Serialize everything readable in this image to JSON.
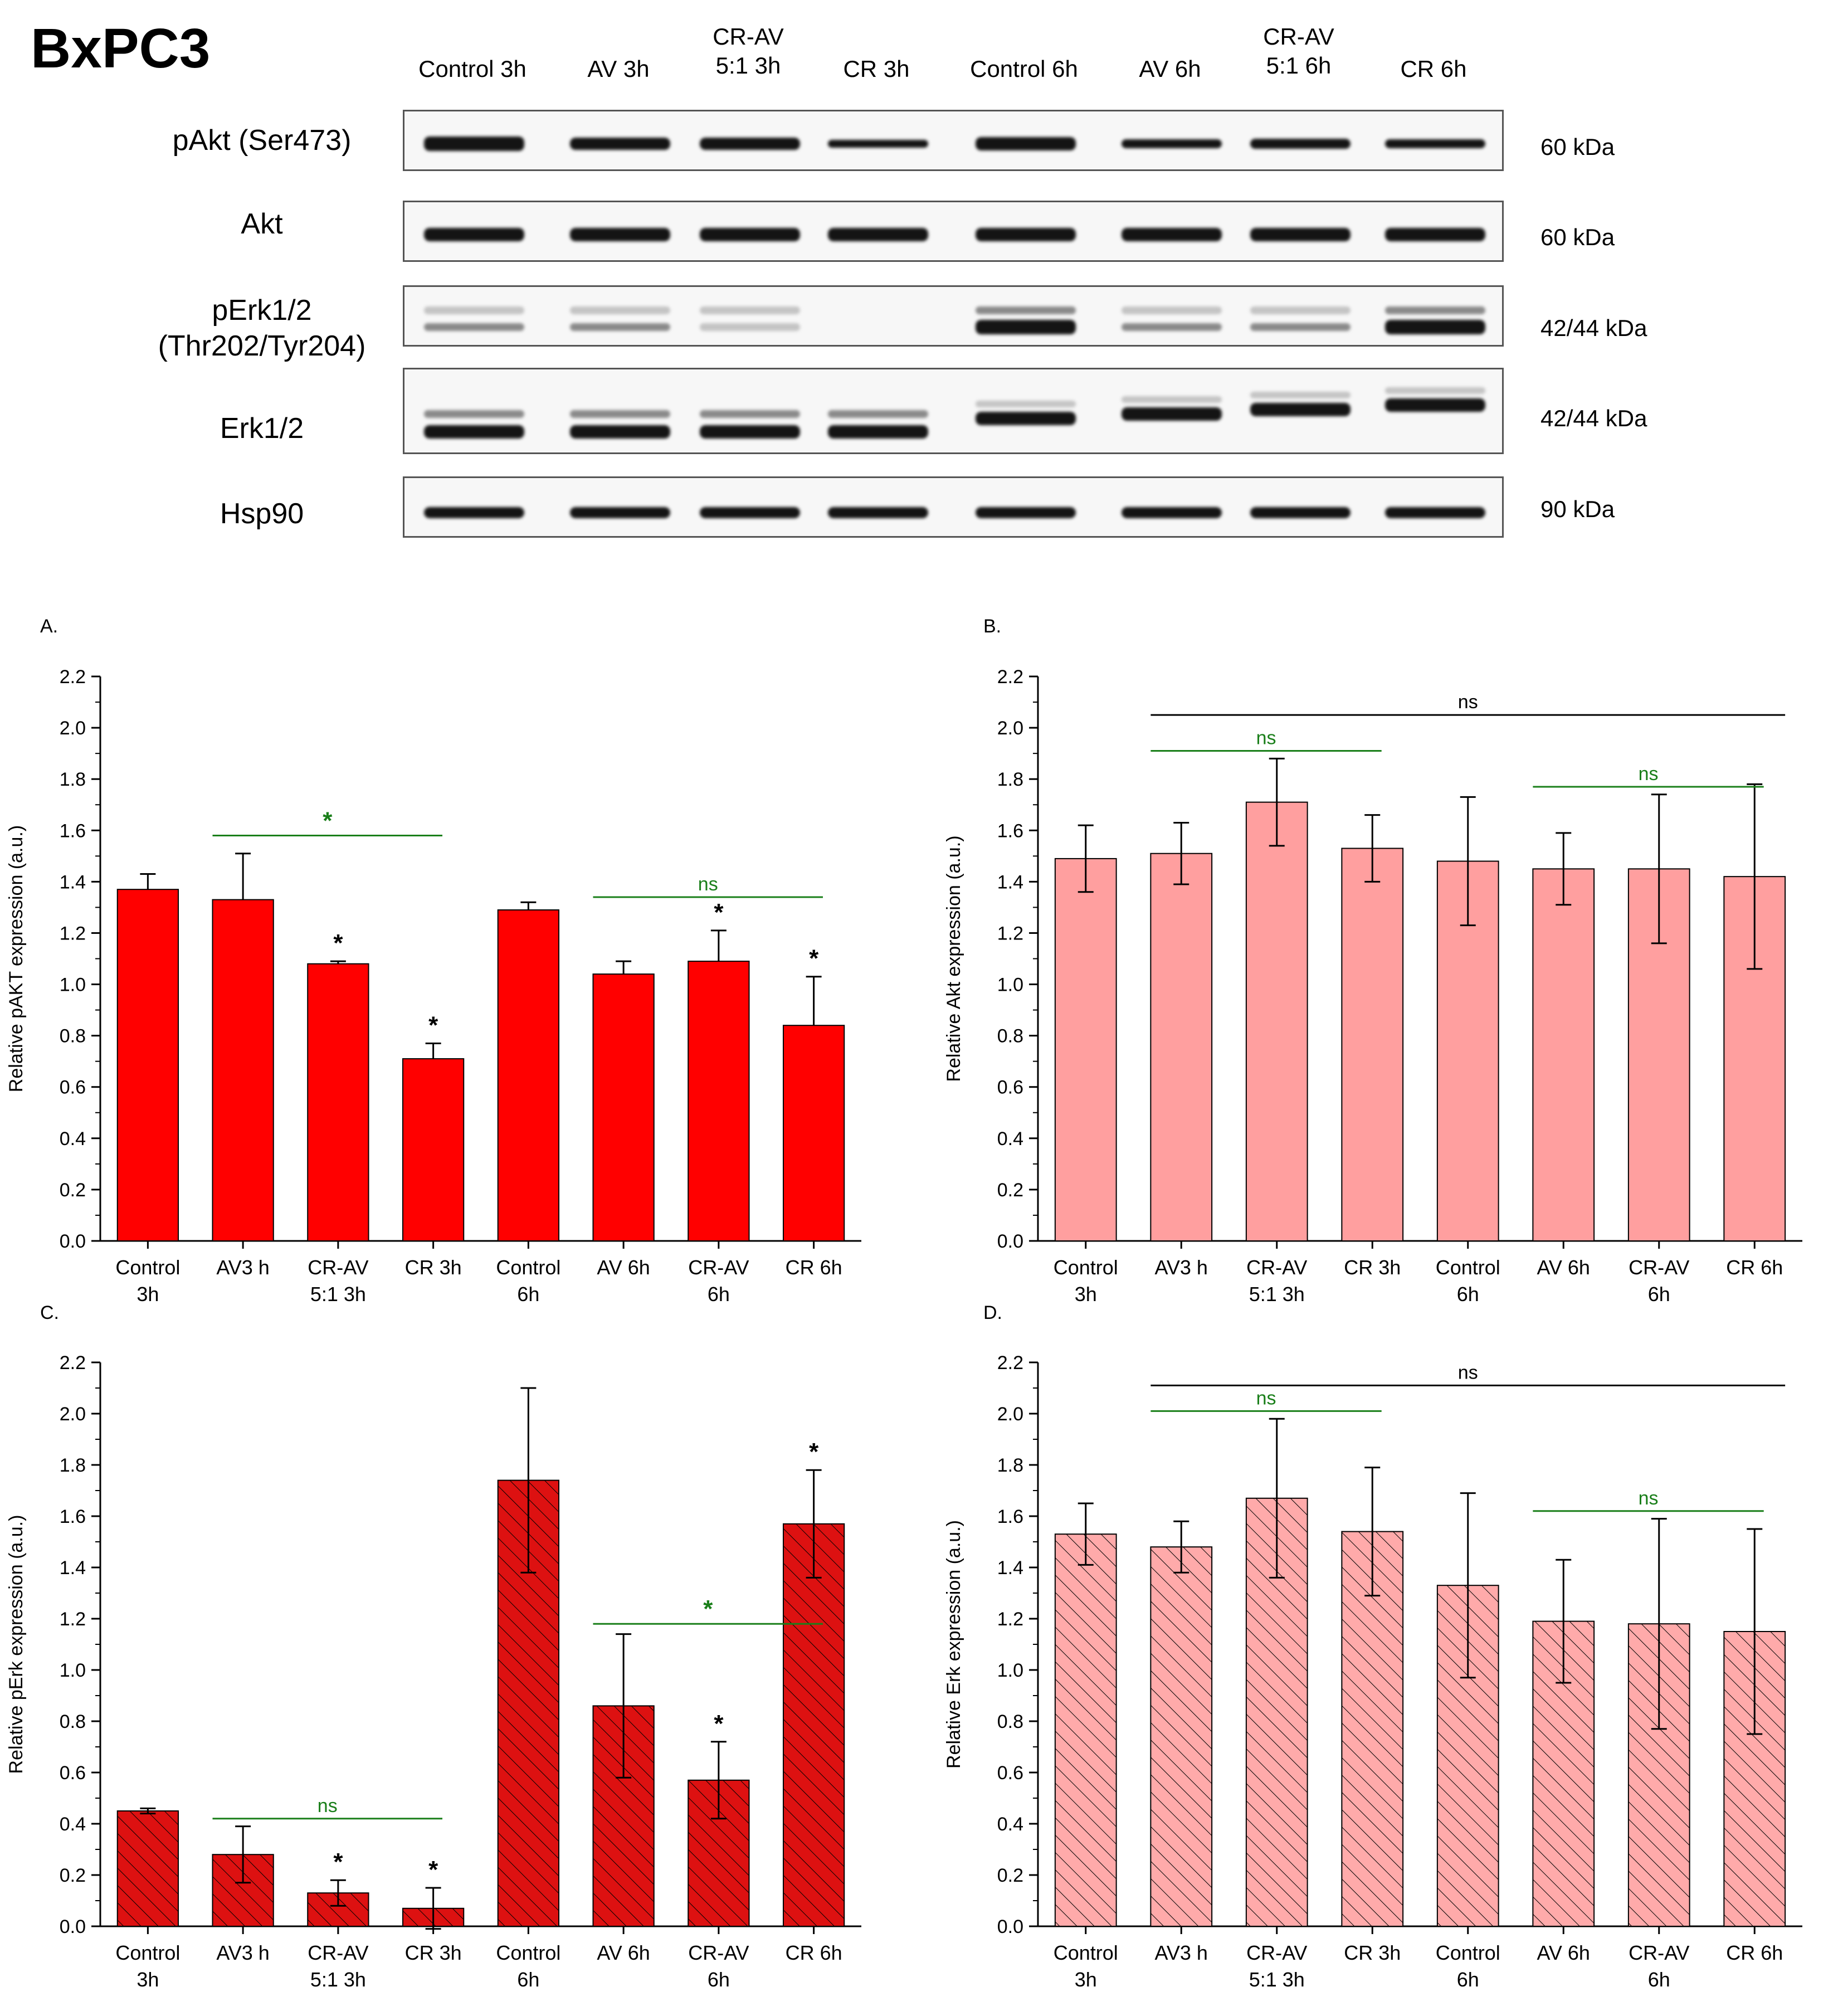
{
  "title": "BxPC3",
  "lanes": [
    "Control 3h",
    "AV 3h",
    "CR-AV\n5:1 3h",
    "CR 3h",
    "Control 6h",
    "AV 6h",
    "CR-AV\n5:1 6h",
    "CR 6h"
  ],
  "blots": [
    {
      "label": "pAkt (Ser473)",
      "kda": "60 kDa"
    },
    {
      "label": "Akt",
      "kda": "60 kDa"
    },
    {
      "label": "pErk1/2\n(Thr202/Tyr204)",
      "kda": "42/44 kDa"
    },
    {
      "label": "Erk1/2",
      "kda": "42/44 kDa"
    },
    {
      "label": "Hsp90",
      "kda": "90 kDa"
    }
  ],
  "colors": {
    "bar_red": "#ff0000",
    "bar_pink": "#ff9f9f",
    "hatch_red": "#dd1111",
    "hatch_pink": "#ffaaaa",
    "sig_green": "#1a7f1a",
    "sig_black": "#000000"
  },
  "chart_data": [
    {
      "panel": "A.",
      "type": "bar",
      "ylabel": "Relative pAKT expression (a.u.)",
      "ylim": [
        0,
        2.2
      ],
      "yticks": [
        "0.0",
        "0.2",
        "0.4",
        "0.6",
        "0.8",
        "1.0",
        "1.2",
        "1.4",
        "1.6",
        "1.8",
        "2.0",
        "2.2"
      ],
      "categories": [
        "Control\n3h",
        "AV3 h",
        "CR-AV\n5:1 3h",
        "CR 3h",
        "Control\n6h",
        "AV 6h",
        "CR-AV\n6h",
        "CR 6h"
      ],
      "values": [
        1.37,
        1.33,
        1.08,
        0.71,
        1.29,
        1.04,
        1.09,
        0.84
      ],
      "errors": [
        0.06,
        0.18,
        0.01,
        0.06,
        0.03,
        0.05,
        0.12,
        0.19
      ],
      "style": "solid-red",
      "stars": [
        "",
        "",
        "*",
        "*",
        "",
        "",
        "*",
        "*"
      ],
      "brackets": [
        {
          "from": 1,
          "to": 3,
          "y": 1.58,
          "label": "*",
          "color": "green"
        },
        {
          "from": 5,
          "to": 7,
          "y": 1.34,
          "label": "ns",
          "color": "green"
        }
      ]
    },
    {
      "panel": "B.",
      "type": "bar",
      "ylabel": "Relative Akt expression (a.u.)",
      "ylim": [
        0,
        2.2
      ],
      "yticks": [
        "0.0",
        "0.2",
        "0.4",
        "0.6",
        "0.8",
        "1.0",
        "1.2",
        "1.4",
        "1.6",
        "1.8",
        "2.0",
        "2.2"
      ],
      "categories": [
        "Control\n3h",
        "AV3 h",
        "CR-AV\n5:1 3h",
        "CR 3h",
        "Control\n6h",
        "AV 6h",
        "CR-AV\n6h",
        "CR 6h"
      ],
      "values": [
        1.49,
        1.51,
        1.71,
        1.53,
        1.48,
        1.45,
        1.45,
        1.42
      ],
      "errors": [
        0.13,
        0.12,
        0.17,
        0.13,
        0.25,
        0.14,
        0.29,
        0.36
      ],
      "style": "solid-pink",
      "stars": [
        "",
        "",
        "",
        "",
        "",
        "",
        "",
        ""
      ],
      "brackets": [
        {
          "from": 1,
          "to": 7,
          "y": 2.05,
          "label": "ns",
          "color": "black"
        },
        {
          "from": 1,
          "to": 3,
          "y": 1.91,
          "label": "ns",
          "color": "green"
        },
        {
          "from": 5,
          "to": 7,
          "y": 1.77,
          "label": "ns",
          "color": "green"
        }
      ]
    },
    {
      "panel": "C.",
      "type": "bar",
      "ylabel": "Relative pErk expression (a.u.)",
      "ylim": [
        0,
        2.2
      ],
      "yticks": [
        "0.0",
        "0.2",
        "0.4",
        "0.6",
        "0.8",
        "1.0",
        "1.2",
        "1.4",
        "1.6",
        "1.8",
        "2.0",
        "2.2"
      ],
      "categories": [
        "Control\n3h",
        "AV3 h",
        "CR-AV\n5:1 3h",
        "CR 3h",
        "Control\n6h",
        "AV 6h",
        "CR-AV\n6h",
        "CR 6h"
      ],
      "values": [
        0.45,
        0.28,
        0.13,
        0.07,
        1.74,
        0.86,
        0.57,
        1.57
      ],
      "errors": [
        0.01,
        0.11,
        0.05,
        0.08,
        0.36,
        0.28,
        0.15,
        0.21
      ],
      "style": "hatch-red",
      "stars": [
        "",
        "",
        "*",
        "*",
        "",
        "",
        "*",
        "*"
      ],
      "brackets": [
        {
          "from": 1,
          "to": 3,
          "y": 0.42,
          "label": "ns",
          "color": "green"
        },
        {
          "from": 5,
          "to": 7,
          "y": 1.18,
          "label": "*",
          "color": "green"
        }
      ]
    },
    {
      "panel": "D.",
      "type": "bar",
      "ylabel": "Relative Erk expression (a.u.)",
      "ylim": [
        0,
        2.2
      ],
      "yticks": [
        "0.0",
        "0.2",
        "0.4",
        "0.6",
        "0.8",
        "1.0",
        "1.2",
        "1.4",
        "1.6",
        "1.8",
        "2.0",
        "2.2"
      ],
      "categories": [
        "Control\n3h",
        "AV3 h",
        "CR-AV\n5:1 3h",
        "CR 3h",
        "Control\n6h",
        "AV 6h",
        "CR-AV\n6h",
        "CR 6h"
      ],
      "values": [
        1.53,
        1.48,
        1.67,
        1.54,
        1.33,
        1.19,
        1.18,
        1.15
      ],
      "errors": [
        0.12,
        0.1,
        0.31,
        0.25,
        0.36,
        0.24,
        0.41,
        0.4
      ],
      "style": "hatch-pink",
      "stars": [
        "",
        "",
        "",
        "",
        "",
        "",
        "",
        ""
      ],
      "brackets": [
        {
          "from": 1,
          "to": 7,
          "y": 2.11,
          "label": "ns",
          "color": "black"
        },
        {
          "from": 1,
          "to": 3,
          "y": 2.01,
          "label": "ns",
          "color": "green"
        },
        {
          "from": 5,
          "to": 7,
          "y": 1.62,
          "label": "ns",
          "color": "green"
        }
      ]
    }
  ]
}
